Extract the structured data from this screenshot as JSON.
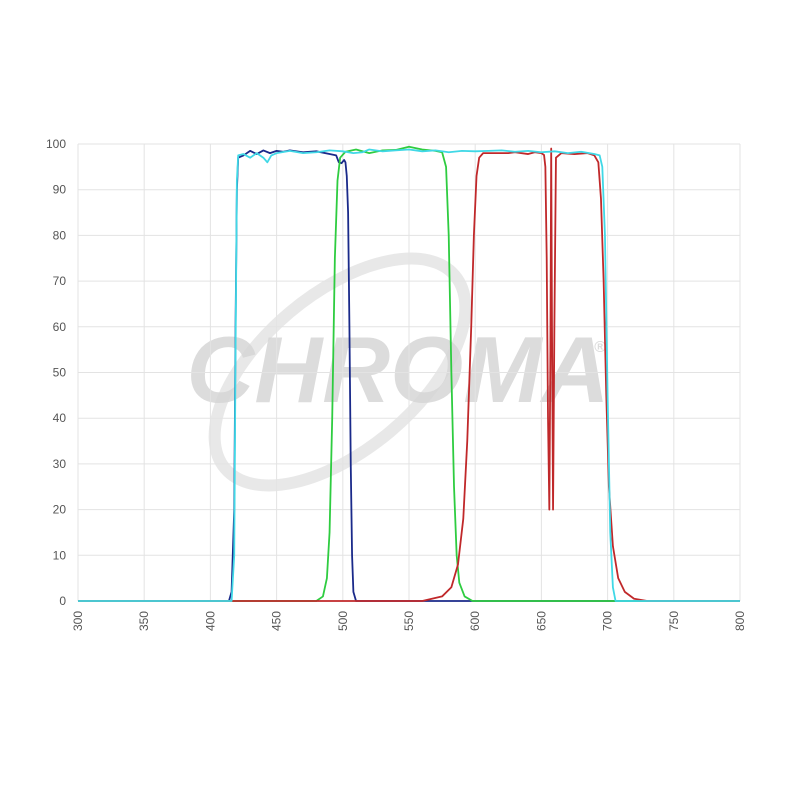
{
  "chart_data": {
    "type": "line",
    "title": "",
    "xlabel": "",
    "ylabel": "",
    "xlim": [
      300,
      800
    ],
    "ylim": [
      0,
      100
    ],
    "x_ticks": [
      300,
      350,
      400,
      450,
      500,
      550,
      600,
      650,
      700,
      750,
      800
    ],
    "y_ticks": [
      0,
      10,
      20,
      30,
      40,
      50,
      60,
      70,
      80,
      90,
      100
    ],
    "grid": true,
    "legend": "none",
    "watermark": "CHROMA",
    "watermark_mark": "®",
    "series": [
      {
        "color": "#1a2a8a",
        "points": [
          [
            300,
            0
          ],
          [
            414,
            0
          ],
          [
            416,
            2
          ],
          [
            418,
            20
          ],
          [
            419,
            60
          ],
          [
            420,
            90
          ],
          [
            421,
            97
          ],
          [
            425,
            97.5
          ],
          [
            430,
            98.5
          ],
          [
            435,
            97.8
          ],
          [
            440,
            98.6
          ],
          [
            445,
            98
          ],
          [
            450,
            98.5
          ],
          [
            455,
            98.3
          ],
          [
            460,
            98.6
          ],
          [
            470,
            98.2
          ],
          [
            480,
            98.4
          ],
          [
            490,
            97.8
          ],
          [
            495,
            97.5
          ],
          [
            497,
            96
          ],
          [
            499,
            95.8
          ],
          [
            501,
            96.5
          ],
          [
            502,
            96
          ],
          [
            503,
            93
          ],
          [
            504,
            85
          ],
          [
            505,
            60
          ],
          [
            506,
            30
          ],
          [
            507,
            10
          ],
          [
            508,
            2
          ],
          [
            510,
            0
          ],
          [
            800,
            0
          ]
        ]
      },
      {
        "color": "#2ecc40",
        "points": [
          [
            300,
            0
          ],
          [
            480,
            0
          ],
          [
            485,
            1
          ],
          [
            488,
            5
          ],
          [
            490,
            15
          ],
          [
            492,
            40
          ],
          [
            494,
            75
          ],
          [
            496,
            92
          ],
          [
            498,
            97
          ],
          [
            502,
            98.3
          ],
          [
            510,
            98.8
          ],
          [
            520,
            98
          ],
          [
            530,
            98.6
          ],
          [
            540,
            98.7
          ],
          [
            550,
            99.4
          ],
          [
            560,
            98.8
          ],
          [
            570,
            98.5
          ],
          [
            575,
            98.2
          ],
          [
            578,
            95
          ],
          [
            580,
            80
          ],
          [
            582,
            50
          ],
          [
            584,
            25
          ],
          [
            586,
            10
          ],
          [
            588,
            4
          ],
          [
            592,
            1
          ],
          [
            598,
            0
          ],
          [
            800,
            0
          ]
        ]
      },
      {
        "color": "#c0282a",
        "points": [
          [
            300,
            0
          ],
          [
            560,
            0
          ],
          [
            575,
            1
          ],
          [
            582,
            3
          ],
          [
            587,
            8
          ],
          [
            591,
            18
          ],
          [
            594,
            35
          ],
          [
            597,
            60
          ],
          [
            599,
            80
          ],
          [
            601,
            93
          ],
          [
            603,
            97
          ],
          [
            606,
            98
          ],
          [
            615,
            98
          ],
          [
            625,
            98
          ],
          [
            630,
            98.2
          ],
          [
            640,
            97.8
          ],
          [
            645,
            98.2
          ],
          [
            650,
            98
          ],
          [
            652,
            97.6
          ],
          [
            653,
            95
          ],
          [
            654,
            75
          ],
          [
            655,
            40
          ],
          [
            656,
            20
          ],
          [
            656.8,
            55
          ],
          [
            657.4,
            99
          ],
          [
            658,
            60
          ],
          [
            658.8,
            20
          ],
          [
            659.8,
            60
          ],
          [
            661,
            97
          ],
          [
            665,
            98
          ],
          [
            675,
            97.8
          ],
          [
            685,
            98
          ],
          [
            690,
            97.5
          ],
          [
            693,
            96
          ],
          [
            695,
            88
          ],
          [
            697,
            70
          ],
          [
            699,
            45
          ],
          [
            701,
            25
          ],
          [
            704,
            12
          ],
          [
            708,
            5
          ],
          [
            713,
            2
          ],
          [
            720,
            0.5
          ],
          [
            730,
            0
          ],
          [
            800,
            0
          ]
        ]
      },
      {
        "color": "#40d8e6",
        "points": [
          [
            300,
            0
          ],
          [
            416,
            0
          ],
          [
            418,
            10
          ],
          [
            419,
            55
          ],
          [
            420,
            92
          ],
          [
            421,
            97.5
          ],
          [
            425,
            97.8
          ],
          [
            430,
            97
          ],
          [
            435,
            98
          ],
          [
            440,
            97
          ],
          [
            443,
            96
          ],
          [
            446,
            97.5
          ],
          [
            450,
            98
          ],
          [
            460,
            98.5
          ],
          [
            470,
            98
          ],
          [
            480,
            98.2
          ],
          [
            490,
            98.6
          ],
          [
            500,
            98.4
          ],
          [
            508,
            98
          ],
          [
            515,
            98.2
          ],
          [
            520,
            98.8
          ],
          [
            530,
            98.4
          ],
          [
            540,
            98.6
          ],
          [
            550,
            98.8
          ],
          [
            560,
            98.4
          ],
          [
            570,
            98.6
          ],
          [
            580,
            98.2
          ],
          [
            590,
            98.5
          ],
          [
            600,
            98.4
          ],
          [
            610,
            98.5
          ],
          [
            620,
            98.6
          ],
          [
            630,
            98.3
          ],
          [
            640,
            98.5
          ],
          [
            650,
            98.2
          ],
          [
            660,
            98.4
          ],
          [
            670,
            98
          ],
          [
            680,
            98.3
          ],
          [
            690,
            97.8
          ],
          [
            694,
            97.5
          ],
          [
            696,
            95
          ],
          [
            698,
            80
          ],
          [
            700,
            45
          ],
          [
            702,
            15
          ],
          [
            704,
            3
          ],
          [
            706,
            0
          ],
          [
            800,
            0
          ]
        ]
      }
    ]
  }
}
